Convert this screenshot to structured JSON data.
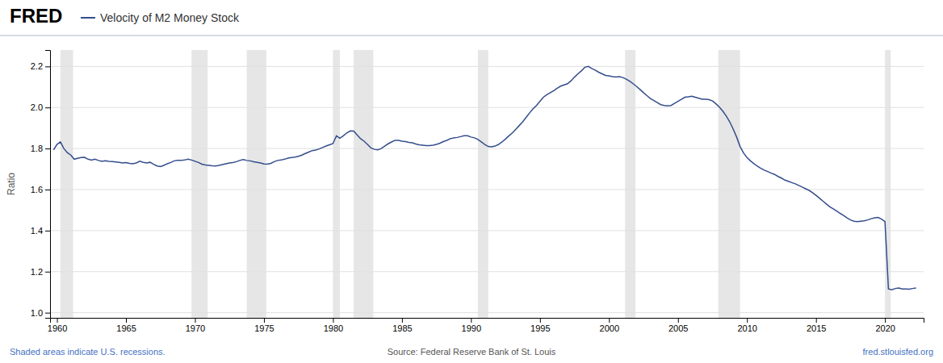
{
  "chart_data": {
    "type": "line",
    "title": "Velocity of M2 Money Stock",
    "ylabel": "Ratio",
    "annotations": [
      "FRED",
      "Shaded areas indicate U.S. recessions.",
      "Source: Federal Reserve Bank of St. Louis",
      "fred.stlouisfed.org"
    ],
    "xlim": [
      1959.5,
      2022.8
    ],
    "xticks": [
      1960,
      1965,
      1970,
      1975,
      1980,
      1985,
      1990,
      1995,
      2000,
      2005,
      2010,
      2015,
      2020
    ],
    "ylim": [
      0.975,
      2.28
    ],
    "yticks": [
      {
        "value": 1.0,
        "label": "1.0"
      },
      1.2,
      1.4,
      1.6,
      1.8,
      {
        "value": 2.0,
        "label": "2.0"
      },
      2.2
    ],
    "grid": true,
    "recession_bands": [
      [
        1960.25,
        1961.17
      ],
      [
        1969.75,
        1970.92
      ],
      [
        1973.75,
        1975.17
      ],
      [
        1980.0,
        1980.5
      ],
      [
        1981.5,
        1982.92
      ],
      [
        1990.5,
        1991.25
      ],
      [
        2001.17,
        2001.92
      ],
      [
        2007.92,
        2009.5
      ],
      [
        2020.0,
        2020.42
      ]
    ],
    "x": [
      1959.75,
      1960.0,
      1960.25,
      1960.5,
      1960.75,
      1961.0,
      1961.25,
      1961.5,
      1961.75,
      1962.0,
      1962.25,
      1962.5,
      1962.75,
      1963.0,
      1963.25,
      1963.5,
      1963.75,
      1964.0,
      1964.25,
      1964.5,
      1964.75,
      1965.0,
      1965.25,
      1965.5,
      1965.75,
      1966.0,
      1966.25,
      1966.5,
      1966.75,
      1967.0,
      1967.25,
      1967.5,
      1967.75,
      1968.0,
      1968.25,
      1968.5,
      1968.75,
      1969.0,
      1969.25,
      1969.5,
      1969.75,
      1970.0,
      1970.25,
      1970.5,
      1970.75,
      1971.0,
      1971.25,
      1971.5,
      1971.75,
      1972.0,
      1972.25,
      1972.5,
      1972.75,
      1973.0,
      1973.25,
      1973.5,
      1973.75,
      1974.0,
      1974.25,
      1974.5,
      1974.75,
      1975.0,
      1975.25,
      1975.5,
      1975.75,
      1976.0,
      1976.25,
      1976.5,
      1976.75,
      1977.0,
      1977.25,
      1977.5,
      1977.75,
      1978.0,
      1978.25,
      1978.5,
      1978.75,
      1979.0,
      1979.25,
      1979.5,
      1979.75,
      1980.0,
      1980.25,
      1980.5,
      1980.75,
      1981.0,
      1981.25,
      1981.5,
      1981.75,
      1982.0,
      1982.25,
      1982.5,
      1982.75,
      1983.0,
      1983.25,
      1983.5,
      1983.75,
      1984.0,
      1984.25,
      1984.5,
      1984.75,
      1985.0,
      1985.25,
      1985.5,
      1985.75,
      1986.0,
      1986.25,
      1986.5,
      1986.75,
      1987.0,
      1987.25,
      1987.5,
      1987.75,
      1988.0,
      1988.25,
      1988.5,
      1988.75,
      1989.0,
      1989.25,
      1989.5,
      1989.75,
      1990.0,
      1990.25,
      1990.5,
      1990.75,
      1991.0,
      1991.25,
      1991.5,
      1991.75,
      1992.0,
      1992.25,
      1992.5,
      1992.75,
      1993.0,
      1993.25,
      1993.5,
      1993.75,
      1994.0,
      1994.25,
      1994.5,
      1994.75,
      1995.0,
      1995.25,
      1995.5,
      1995.75,
      1996.0,
      1996.25,
      1996.5,
      1996.75,
      1997.0,
      1997.25,
      1997.5,
      1997.75,
      1998.0,
      1998.25,
      1998.5,
      1998.75,
      1999.0,
      1999.25,
      1999.5,
      1999.75,
      2000.0,
      2000.25,
      2000.5,
      2000.75,
      2001.0,
      2001.25,
      2001.5,
      2001.75,
      2002.0,
      2002.25,
      2002.5,
      2002.75,
      2003.0,
      2003.25,
      2003.5,
      2003.75,
      2004.0,
      2004.25,
      2004.5,
      2004.75,
      2005.0,
      2005.25,
      2005.5,
      2005.75,
      2006.0,
      2006.25,
      2006.5,
      2006.75,
      2007.0,
      2007.25,
      2007.5,
      2007.75,
      2008.0,
      2008.25,
      2008.5,
      2008.75,
      2009.0,
      2009.25,
      2009.5,
      2009.75,
      2010.0,
      2010.25,
      2010.5,
      2010.75,
      2011.0,
      2011.25,
      2011.5,
      2011.75,
      2012.0,
      2012.25,
      2012.5,
      2012.75,
      2013.0,
      2013.25,
      2013.5,
      2013.75,
      2014.0,
      2014.25,
      2014.5,
      2014.75,
      2015.0,
      2015.25,
      2015.5,
      2015.75,
      2016.0,
      2016.25,
      2016.5,
      2016.75,
      2017.0,
      2017.25,
      2017.5,
      2017.75,
      2018.0,
      2018.25,
      2018.5,
      2018.75,
      2019.0,
      2019.25,
      2019.5,
      2019.75,
      2020.0,
      2020.25,
      2020.5,
      2020.75,
      2021.0,
      2021.25,
      2021.5,
      2021.75,
      2022.0,
      2022.25
    ],
    "series": [
      {
        "color": "#344d8c",
        "values": [
          1.793,
          1.82,
          1.832,
          1.8,
          1.78,
          1.768,
          1.748,
          1.752,
          1.756,
          1.757,
          1.748,
          1.744,
          1.748,
          1.742,
          1.738,
          1.74,
          1.738,
          1.737,
          1.735,
          1.733,
          1.73,
          1.732,
          1.728,
          1.726,
          1.73,
          1.738,
          1.733,
          1.73,
          1.733,
          1.723,
          1.715,
          1.712,
          1.718,
          1.726,
          1.732,
          1.74,
          1.742,
          1.742,
          1.744,
          1.748,
          1.744,
          1.738,
          1.732,
          1.724,
          1.72,
          1.718,
          1.716,
          1.715,
          1.718,
          1.722,
          1.726,
          1.73,
          1.732,
          1.736,
          1.742,
          1.746,
          1.742,
          1.74,
          1.736,
          1.733,
          1.73,
          1.725,
          1.724,
          1.728,
          1.736,
          1.742,
          1.744,
          1.748,
          1.753,
          1.756,
          1.758,
          1.762,
          1.768,
          1.776,
          1.783,
          1.79,
          1.793,
          1.798,
          1.805,
          1.812,
          1.818,
          1.824,
          1.862,
          1.85,
          1.862,
          1.876,
          1.886,
          1.885,
          1.866,
          1.848,
          1.836,
          1.82,
          1.803,
          1.796,
          1.794,
          1.8,
          1.812,
          1.823,
          1.832,
          1.84,
          1.84,
          1.836,
          1.834,
          1.83,
          1.828,
          1.822,
          1.818,
          1.816,
          1.814,
          1.814,
          1.816,
          1.82,
          1.826,
          1.834,
          1.84,
          1.848,
          1.852,
          1.854,
          1.858,
          1.862,
          1.862,
          1.856,
          1.852,
          1.844,
          1.832,
          1.82,
          1.81,
          1.808,
          1.812,
          1.82,
          1.832,
          1.846,
          1.862,
          1.876,
          1.894,
          1.912,
          1.93,
          1.952,
          1.974,
          1.994,
          2.01,
          2.03,
          2.05,
          2.062,
          2.072,
          2.082,
          2.094,
          2.104,
          2.11,
          2.116,
          2.13,
          2.148,
          2.164,
          2.178,
          2.196,
          2.2,
          2.19,
          2.182,
          2.172,
          2.164,
          2.156,
          2.154,
          2.15,
          2.148,
          2.15,
          2.146,
          2.138,
          2.128,
          2.116,
          2.102,
          2.088,
          2.072,
          2.058,
          2.044,
          2.034,
          2.024,
          2.014,
          2.01,
          2.008,
          2.01,
          2.02,
          2.03,
          2.04,
          2.05,
          2.052,
          2.055,
          2.05,
          2.045,
          2.04,
          2.04,
          2.038,
          2.032,
          2.018,
          2.002,
          1.982,
          1.958,
          1.93,
          1.895,
          1.856,
          1.81,
          1.778,
          1.756,
          1.74,
          1.726,
          1.714,
          1.704,
          1.695,
          1.688,
          1.68,
          1.674,
          1.664,
          1.656,
          1.646,
          1.64,
          1.634,
          1.628,
          1.62,
          1.612,
          1.604,
          1.596,
          1.585,
          1.572,
          1.558,
          1.544,
          1.53,
          1.516,
          1.506,
          1.495,
          1.484,
          1.474,
          1.462,
          1.452,
          1.446,
          1.444,
          1.446,
          1.448,
          1.452,
          1.458,
          1.462,
          1.464,
          1.456,
          1.444,
          1.116,
          1.112,
          1.118,
          1.12,
          1.116,
          1.116,
          1.115,
          1.118,
          1.12
        ]
      }
    ]
  }
}
